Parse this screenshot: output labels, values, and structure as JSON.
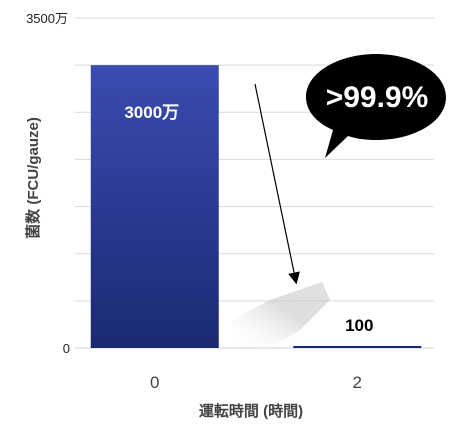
{
  "chart_data": {
    "type": "bar",
    "categories": [
      "0",
      "2"
    ],
    "values": [
      30000000,
      100
    ],
    "ylim": [
      0,
      35000000
    ],
    "y_tick_labels": [
      "0",
      "3500万"
    ],
    "data_labels": [
      "3000万",
      "100"
    ],
    "xlabel": "運転時間 (時間)",
    "ylabel": "菌数 (FCU/gauze)",
    "grid": true,
    "annotation": ">99.9%"
  },
  "colors": {
    "bar_top": "#3b4bb0",
    "bar_bottom": "#1b2a72",
    "callout_fill": "#000000",
    "callout_text": "#ffffff",
    "grid": "#d9d9d9"
  }
}
